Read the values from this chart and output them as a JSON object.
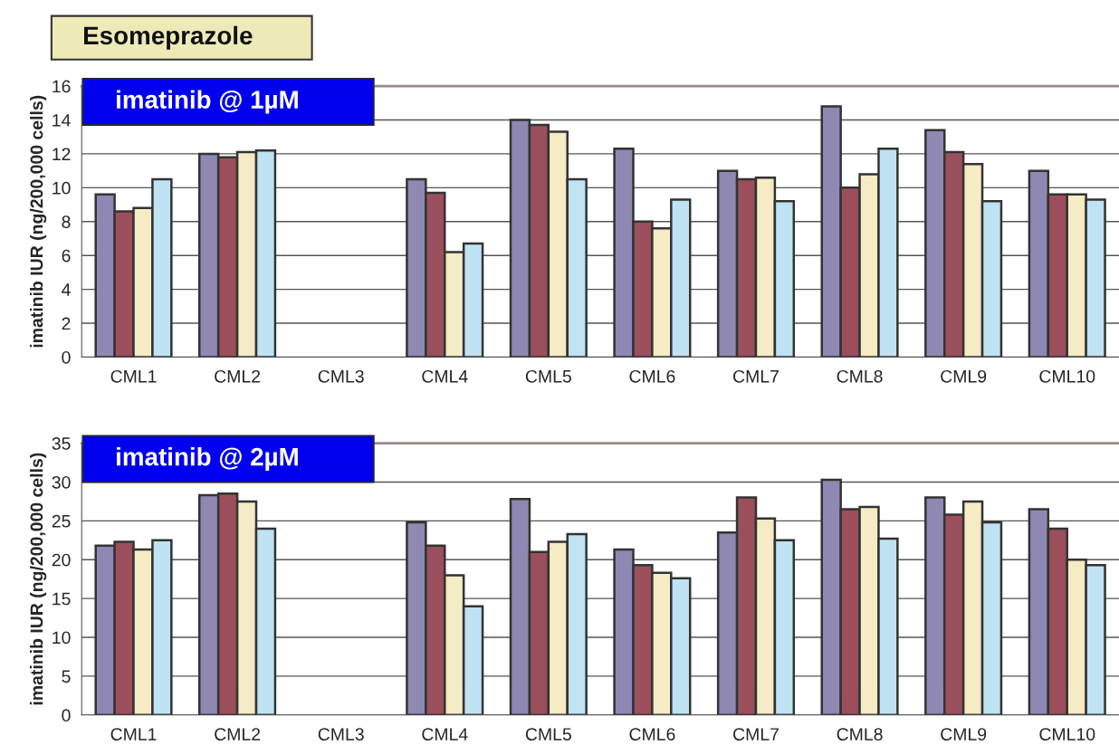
{
  "chart_data": [
    {
      "type": "bar",
      "title": "Esomeprazole",
      "subtitle": "imatinib @ 1µM",
      "ylabel": "imatinib IUR (ng/200,000 cells)",
      "categories": [
        "CML1",
        "CML2",
        "CML3",
        "CML4",
        "CML5",
        "CML6",
        "CML7",
        "CML8",
        "CML9",
        "CML10"
      ],
      "series": [
        {
          "color": "#8f88b3",
          "values": [
            9.6,
            12.0,
            null,
            10.5,
            14.0,
            12.3,
            11.0,
            14.8,
            13.4,
            11.0
          ]
        },
        {
          "color": "#9b4f5c",
          "values": [
            8.6,
            11.8,
            null,
            9.7,
            13.7,
            8.0,
            10.5,
            10.0,
            12.1,
            9.6
          ]
        },
        {
          "color": "#f5ebc4",
          "values": [
            8.8,
            12.1,
            null,
            6.2,
            13.3,
            7.6,
            10.6,
            10.8,
            11.4,
            9.6
          ]
        },
        {
          "color": "#bfe3f2",
          "values": [
            10.5,
            12.2,
            null,
            6.7,
            10.5,
            9.3,
            9.2,
            12.3,
            9.2,
            9.3
          ]
        }
      ],
      "ylim": [
        0,
        16
      ],
      "yticks": [
        0,
        2,
        4,
        6,
        8,
        10,
        12,
        14,
        16
      ],
      "grid": "y",
      "legend": false
    },
    {
      "type": "bar",
      "subtitle": "imatinib @ 2µM",
      "ylabel": "imatinib IUR (ng/200,000 cells)",
      "categories": [
        "CML1",
        "CML2",
        "CML3",
        "CML4",
        "CML5",
        "CML6",
        "CML7",
        "CML8",
        "CML9",
        "CML10"
      ],
      "series": [
        {
          "color": "#8f88b3",
          "values": [
            21.8,
            28.3,
            null,
            24.8,
            27.8,
            21.3,
            23.5,
            30.3,
            28.0,
            26.5
          ]
        },
        {
          "color": "#9b4f5c",
          "values": [
            22.3,
            28.5,
            null,
            21.8,
            21.0,
            19.3,
            28.0,
            26.5,
            25.8,
            24.0
          ]
        },
        {
          "color": "#f5ebc4",
          "values": [
            21.3,
            27.5,
            null,
            18.0,
            22.3,
            18.3,
            25.3,
            26.8,
            27.5,
            20.0
          ]
        },
        {
          "color": "#bfe3f2",
          "values": [
            22.5,
            24.0,
            null,
            14.0,
            23.3,
            17.6,
            22.5,
            22.7,
            24.8,
            19.3
          ]
        }
      ],
      "ylim": [
        0,
        35
      ],
      "yticks": [
        0,
        5,
        10,
        15,
        20,
        25,
        30,
        35
      ],
      "grid": "y",
      "legend": false
    }
  ]
}
